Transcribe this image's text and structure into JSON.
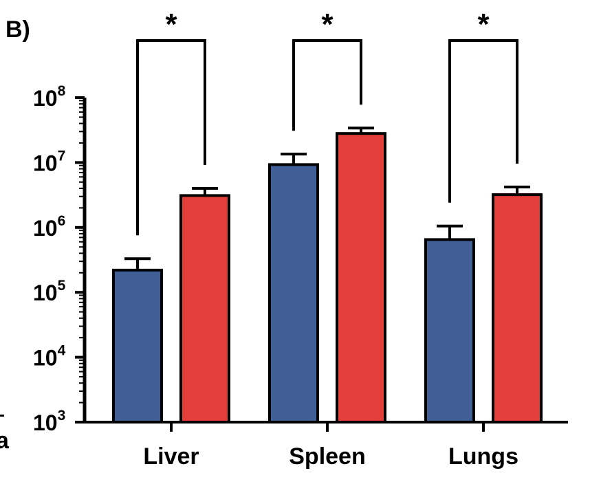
{
  "panel_label": "B)",
  "edge_fragment": "a",
  "chart_data": {
    "type": "bar",
    "title": "",
    "xlabel": "",
    "ylabel": "",
    "categories": [
      "Liver",
      "Spleen",
      "Lungs"
    ],
    "series": [
      {
        "values": [
          220000,
          9300000,
          650000
        ],
        "errors": [
          330000,
          13500000,
          1050000
        ],
        "color": "#3f5f96"
      },
      {
        "values": [
          3100000,
          28000000,
          3200000
        ],
        "errors": [
          4000000,
          34000000,
          4200000
        ],
        "color": "#e43e3b"
      }
    ],
    "y_scale": "log",
    "ylim": [
      1000,
      100000000
    ],
    "y_ticks": [
      {
        "base": "10",
        "exp": "3",
        "value": 1000
      },
      {
        "base": "10",
        "exp": "4",
        "value": 10000
      },
      {
        "base": "10",
        "exp": "5",
        "value": 100000
      },
      {
        "base": "10",
        "exp": "6",
        "value": 1000000
      },
      {
        "base": "10",
        "exp": "7",
        "value": 10000000
      },
      {
        "base": "10",
        "exp": "8",
        "value": 100000000
      }
    ],
    "significance": [
      {
        "category": "Liver",
        "label": "*"
      },
      {
        "category": "Spleen",
        "label": "*"
      },
      {
        "category": "Lungs",
        "label": "*"
      }
    ],
    "legend": false,
    "grid": false
  }
}
